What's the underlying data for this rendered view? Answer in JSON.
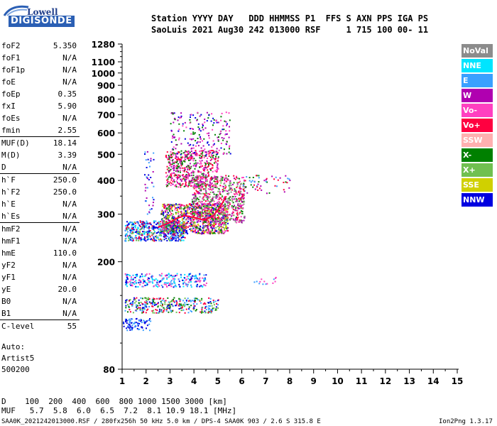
{
  "logo": {
    "line1": "Lowell",
    "line2": "DIGISONDE"
  },
  "header": {
    "row1": "Station YYYY DAY   DDD HHMMSS P1  FFS S AXN PPS IGA PS",
    "row2": "SaoLuis 2021 Aug30 242 013000 RSF     1 715 100 00- 11"
  },
  "scaled_params": [
    {
      "name": "foF2",
      "value": "5.350"
    },
    {
      "name": "foF1",
      "value": "N/A"
    },
    {
      "name": "foF1p",
      "value": "N/A"
    },
    {
      "name": "foE",
      "value": "N/A"
    },
    {
      "name": "foEp",
      "value": "0.35"
    },
    {
      "name": "fxI",
      "value": "5.90"
    },
    {
      "name": "foEs",
      "value": "N/A"
    },
    {
      "name": "fmin",
      "value": "2.55"
    },
    {
      "name": "MUF(D)",
      "value": "18.14",
      "sep": true
    },
    {
      "name": "M(D)",
      "value": "3.39"
    },
    {
      "name": "D",
      "value": "N/A"
    },
    {
      "name": "h`F",
      "value": "250.0",
      "sep": true
    },
    {
      "name": "h`F2",
      "value": "250.0"
    },
    {
      "name": "h`E",
      "value": "N/A"
    },
    {
      "name": "h`Es",
      "value": "N/A"
    },
    {
      "name": "hmF2",
      "value": "N/A",
      "sep": true
    },
    {
      "name": "hmF1",
      "value": "N/A"
    },
    {
      "name": "hmE",
      "value": "110.0"
    },
    {
      "name": "yF2",
      "value": "N/A"
    },
    {
      "name": "yF1",
      "value": "N/A"
    },
    {
      "name": "yE",
      "value": "20.0"
    },
    {
      "name": "B0",
      "value": "N/A"
    },
    {
      "name": "B1",
      "value": "N/A"
    },
    {
      "name": "C-level",
      "value": "55",
      "sep": true
    }
  ],
  "autoscale": {
    "line1": "Auto:",
    "line2": "Artist5",
    "line3": "500200"
  },
  "legend": [
    {
      "label": "NoVal",
      "color": "#8c8c8c"
    },
    {
      "label": "NNE",
      "color": "#00e5ff"
    },
    {
      "label": "E",
      "color": "#3aa0ff"
    },
    {
      "label": "W",
      "color": "#b000b0"
    },
    {
      "label": "Vo-",
      "color": "#ff40c0"
    },
    {
      "label": "Vo+",
      "color": "#ff0040"
    },
    {
      "label": "SSW",
      "color": "#ffb0b0"
    },
    {
      "label": "X-",
      "color": "#008000"
    },
    {
      "label": "X+",
      "color": "#70c050"
    },
    {
      "label": "SSE",
      "color": "#d0d000"
    },
    {
      "label": "NNW",
      "color": "#0000e0"
    }
  ],
  "footer": {
    "d_row": "D    100  200  400  600  800 1000 1500 3000 [km]",
    "muf_row": "MUF   5.7  5.8  6.0  6.5  7.2  8.1 10.9 18.1 [MHz]",
    "source": "SAA0K_2021242013000.RSF / 280fx256h 50 kHz 5.0 km / DPS-4 SAA0K 903 / 2.6 S 315.8 E",
    "version": "Ion2Png 1.3.17"
  },
  "chart_data": {
    "type": "scatter",
    "title": "",
    "xlabel": "",
    "ylabel": "",
    "xlim": [
      1,
      15
    ],
    "ylim": [
      80,
      1280
    ],
    "x_ticks": [
      1,
      2,
      3,
      4,
      5,
      6,
      7,
      8,
      9,
      10,
      11,
      12,
      13,
      14,
      15
    ],
    "y_ticks": [
      80,
      200,
      300,
      400,
      500,
      600,
      700,
      800,
      900,
      1000,
      1100,
      1280
    ],
    "y_scale": "log",
    "grid": false,
    "legend_position": "right",
    "trace_color": "#ff0040",
    "trace": {
      "name": "",
      "x": [
        2.5,
        2.8,
        3.0,
        3.3,
        3.6,
        4.0,
        4.4,
        4.8,
        5.1,
        5.35
      ],
      "y": [
        268,
        275,
        280,
        290,
        296,
        292,
        285,
        295,
        320,
        350
      ]
    },
    "clusters": [
      {
        "x": [
          1.1,
          3.6
        ],
        "y": [
          240,
          285
        ],
        "n": 520,
        "colors": [
          "#0000e0",
          "#3aa0ff",
          "#00e5ff",
          "#0000e0",
          "#ff0040",
          "#70c050"
        ]
      },
      {
        "x": [
          2.6,
          5.4
        ],
        "y": [
          255,
          330
        ],
        "n": 900,
        "colors": [
          "#ff0040",
          "#b000b0",
          "#008000",
          "#ff40c0",
          "#70c050",
          "#d0d000",
          "#0000e0"
        ]
      },
      {
        "x": [
          3.9,
          6.1
        ],
        "y": [
          280,
          420
        ],
        "n": 700,
        "colors": [
          "#ff0040",
          "#b000b0",
          "#008000",
          "#70c050",
          "#ff40c0",
          "#8c8c8c"
        ]
      },
      {
        "x": [
          2.8,
          5.0
        ],
        "y": [
          380,
          520
        ],
        "n": 520,
        "colors": [
          "#b000b0",
          "#ff40c0",
          "#ff0040",
          "#008000"
        ]
      },
      {
        "x": [
          3.0,
          5.5
        ],
        "y": [
          500,
          720
        ],
        "n": 200,
        "colors": [
          "#b000b0",
          "#008000",
          "#ff40c0",
          "#0000e0"
        ]
      },
      {
        "x": [
          5.8,
          8.0
        ],
        "y": [
          360,
          420
        ],
        "n": 60,
        "colors": [
          "#ff0040",
          "#b000b0",
          "#008000",
          "#3aa0ff"
        ]
      },
      {
        "x": [
          1.1,
          4.5
        ],
        "y": [
          162,
          182
        ],
        "n": 260,
        "colors": [
          "#0000e0",
          "#3aa0ff",
          "#00e5ff",
          "#ff40c0"
        ]
      },
      {
        "x": [
          1.1,
          5.0
        ],
        "y": [
          130,
          148
        ],
        "n": 340,
        "colors": [
          "#0000e0",
          "#3aa0ff",
          "#008000",
          "#70c050",
          "#ff0040"
        ]
      },
      {
        "x": [
          1.0,
          2.2
        ],
        "y": [
          112,
          124
        ],
        "n": 80,
        "colors": [
          "#0000e0",
          "#3aa0ff"
        ]
      },
      {
        "x": [
          6.5,
          7.4
        ],
        "y": [
          166,
          176
        ],
        "n": 14,
        "colors": [
          "#3aa0ff",
          "#ff40c0"
        ]
      },
      {
        "x": [
          1.9,
          2.3
        ],
        "y": [
          300,
          520
        ],
        "n": 40,
        "colors": [
          "#0000e0",
          "#3aa0ff",
          "#b000b0"
        ]
      }
    ]
  }
}
